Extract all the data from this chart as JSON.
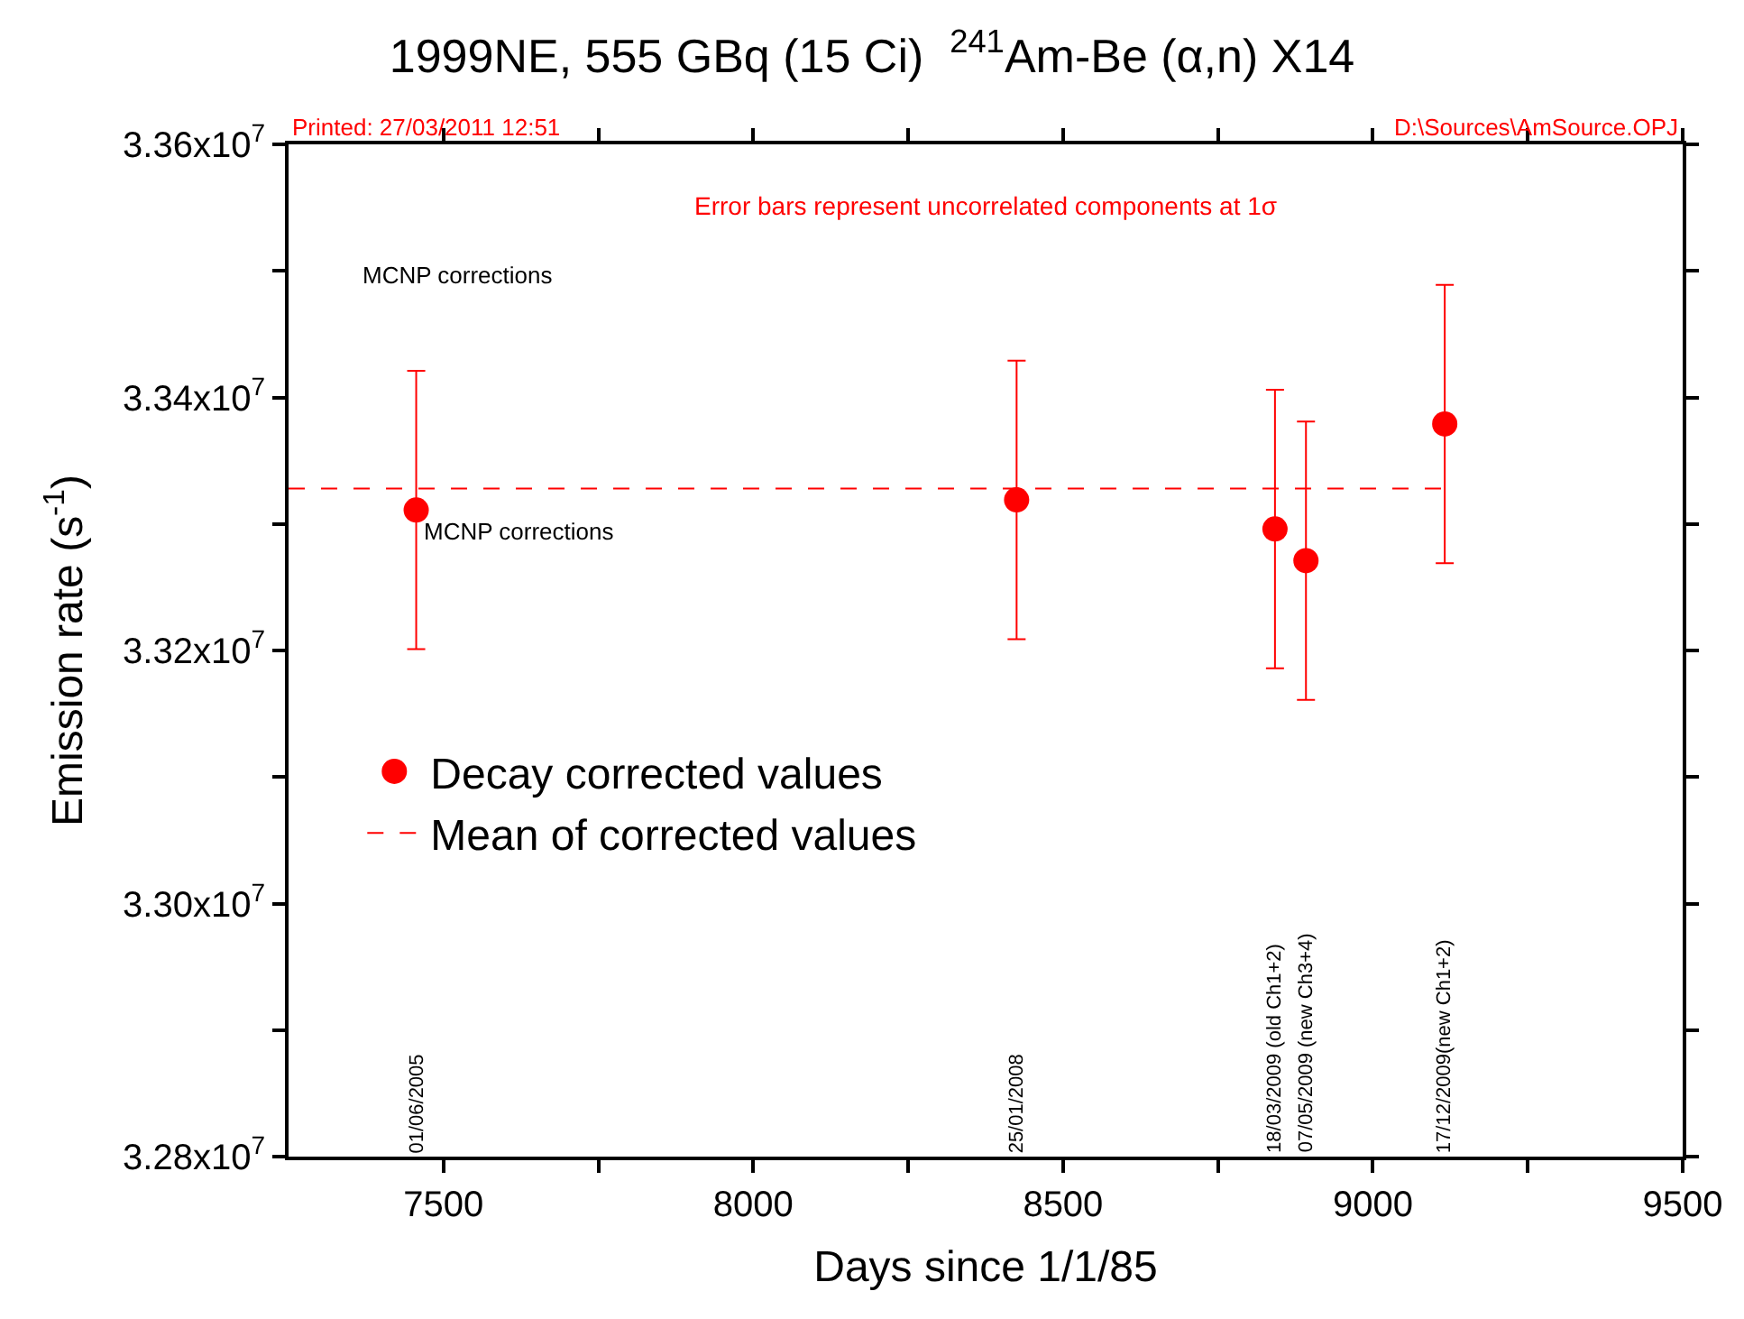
{
  "chart_data": {
    "type": "scatter",
    "title": "1999NE, 555 GBq (15 Ci)  $^{241}$Am-Be (α,n) X14",
    "xlabel": "Days since 1/1/85",
    "ylabel": "Emission rate (s$^{-1}$)",
    "x": [
      7456,
      8425,
      8842,
      8892,
      9116
    ],
    "series": [
      {
        "name": "Decay corrected values",
        "color": "#ff0000",
        "marker": "circle",
        "values": [
          33311000,
          33319000,
          33296000,
          33271000,
          33379000
        ],
        "errors": [
          110000,
          110000,
          110000,
          110000,
          110000
        ]
      },
      {
        "name": "Mean of corrected values",
        "type": "line",
        "color": "#ff0000",
        "line_style": "dashed",
        "marker": "none",
        "x": [
          7250,
          9116
        ],
        "values": [
          33328000,
          33328000
        ]
      }
    ],
    "xlim": [
      7250,
      9500
    ],
    "xticks": [
      7500,
      {
        "value": 7750,
        "label": null
      },
      8000,
      {
        "value": 8250,
        "label": null
      },
      8500,
      {
        "value": 8750,
        "label": null
      },
      9000,
      {
        "value": 9250,
        "label": null
      },
      9500
    ],
    "ylim": [
      32800000,
      33600000
    ],
    "yticks": [
      {
        "value": 32800000,
        "label": "3.28x10$^{7}$"
      },
      {
        "value": 32900000,
        "label": null
      },
      {
        "value": 33000000,
        "label": "3.30x10$^{7}$"
      },
      {
        "value": 33100000,
        "label": null
      },
      {
        "value": 33200000,
        "label": "3.32x10$^{7}$"
      },
      {
        "value": 33300000,
        "label": null
      },
      {
        "value": 33400000,
        "label": "3.34x10$^{7}$"
      },
      {
        "value": 33500000,
        "label": null
      },
      {
        "value": 33600000,
        "label": "3.36x10$^{7}$"
      }
    ],
    "legend": "left",
    "annotations": [
      "Printed: 27/03/2011 12:51",
      "D:\\Sources\\AmSource.OPJ",
      "Error bars represent uncorrelated components at 1σ",
      "MCNP corrections",
      {
        "text": "MCNP corrections",
        "x": 7456,
        "y": 33311000
      },
      "01/06/2005",
      "25/01/2008",
      "18/03/2009 (old Ch1+2)",
      "07/05/2009 (new Ch3+4)",
      "17/12/2009(new Ch1+2)"
    ]
  }
}
